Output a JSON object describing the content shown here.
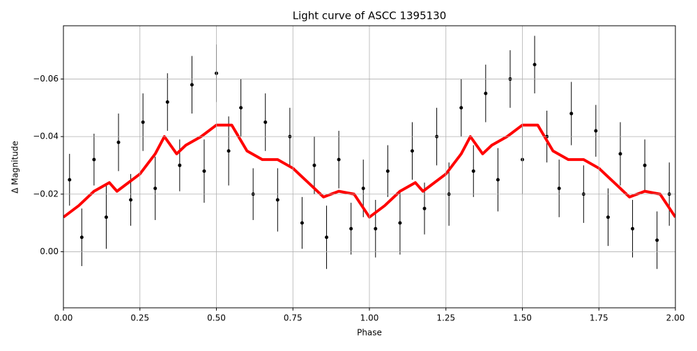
{
  "chart_data": {
    "type": "errorbar-line",
    "title": "Light curve of ASCC 1395130",
    "xlabel": "Phase",
    "ylabel": "Δ Magnitude",
    "xlim": [
      0,
      2
    ],
    "ylim": [
      0.0195,
      -0.0785
    ],
    "grid": true,
    "xticks": [
      {
        "value": 0,
        "label": "0.00"
      },
      {
        "value": 0.25,
        "label": "0.25"
      },
      {
        "value": 0.5,
        "label": "0.50"
      },
      {
        "value": 0.75,
        "label": "0.75"
      },
      {
        "value": 1,
        "label": "1.00"
      },
      {
        "value": 1.25,
        "label": "1.25"
      },
      {
        "value": 1.5,
        "label": "1.50"
      },
      {
        "value": 1.75,
        "label": "1.75"
      },
      {
        "value": 2,
        "label": "2.00"
      }
    ],
    "yticks": [
      {
        "value": -0.06,
        "label": "−0.06"
      },
      {
        "value": -0.04,
        "label": "−0.04"
      },
      {
        "value": -0.02,
        "label": "−0.02"
      },
      {
        "value": 0,
        "label": "0.00"
      }
    ],
    "series": [
      {
        "type": "errorbar",
        "color": "#000000",
        "x": [
          0.02,
          0.06,
          0.1,
          0.14,
          0.18,
          0.22,
          0.26,
          0.3,
          0.34,
          0.38,
          0.42,
          0.46,
          0.5,
          0.54,
          0.58,
          0.62,
          0.66,
          0.7,
          0.74,
          0.78,
          0.82,
          0.86,
          0.9,
          0.94,
          0.98,
          1.02,
          1.06,
          1.1,
          1.14,
          1.18,
          1.22,
          1.26,
          1.3,
          1.34,
          1.38,
          1.42,
          1.46,
          1.5,
          1.54,
          1.58,
          1.62,
          1.66,
          1.7,
          1.74,
          1.78,
          1.82,
          1.86,
          1.9,
          1.94,
          1.98
        ],
        "values": [
          -0.025,
          -0.005,
          -0.032,
          -0.012,
          -0.038,
          -0.018,
          -0.045,
          -0.022,
          -0.052,
          -0.03,
          -0.058,
          -0.028,
          -0.062,
          -0.035,
          -0.05,
          -0.02,
          -0.045,
          -0.018,
          -0.04,
          -0.01,
          -0.03,
          -0.005,
          -0.032,
          -0.008,
          -0.022,
          -0.008,
          -0.028,
          -0.01,
          -0.035,
          -0.015,
          -0.04,
          -0.02,
          -0.05,
          -0.028,
          -0.055,
          -0.025,
          -0.06,
          -0.032,
          -0.065,
          -0.04,
          -0.022,
          -0.048,
          -0.02,
          -0.042,
          -0.012,
          -0.034,
          -0.008,
          -0.03,
          -0.004,
          -0.02
        ],
        "errors": [
          0.009,
          0.01,
          0.009,
          0.011,
          0.01,
          0.009,
          0.01,
          0.011,
          0.01,
          0.009,
          0.01,
          0.011,
          0.01,
          0.012,
          0.01,
          0.009,
          0.01,
          0.011,
          0.01,
          0.009,
          0.01,
          0.011,
          0.01,
          0.009,
          0.01,
          0.01,
          0.009,
          0.011,
          0.01,
          0.009,
          0.01,
          0.011,
          0.01,
          0.009,
          0.01,
          0.011,
          0.01,
          0.012,
          0.01,
          0.009,
          0.01,
          0.011,
          0.01,
          0.009,
          0.01,
          0.011,
          0.01,
          0.009,
          0.01,
          0.011
        ]
      },
      {
        "type": "line",
        "color": "#ff0000",
        "x": [
          0,
          0.05,
          0.1,
          0.15,
          0.175,
          0.2,
          0.25,
          0.3,
          0.33,
          0.37,
          0.4,
          0.45,
          0.5,
          0.55,
          0.6,
          0.65,
          0.7,
          0.75,
          0.8,
          0.85,
          0.9,
          0.95,
          1,
          1.05,
          1.1,
          1.15,
          1.175,
          1.2,
          1.25,
          1.3,
          1.33,
          1.37,
          1.4,
          1.45,
          1.5,
          1.55,
          1.6,
          1.65,
          1.7,
          1.75,
          1.8,
          1.85,
          1.9,
          1.95,
          2
        ],
        "values": [
          -0.012,
          -0.016,
          -0.021,
          -0.024,
          -0.021,
          -0.023,
          -0.027,
          -0.034,
          -0.04,
          -0.034,
          -0.037,
          -0.04,
          -0.044,
          -0.044,
          -0.035,
          -0.032,
          -0.032,
          -0.029,
          -0.024,
          -0.019,
          -0.021,
          -0.02,
          -0.012,
          -0.016,
          -0.021,
          -0.024,
          -0.021,
          -0.023,
          -0.027,
          -0.034,
          -0.04,
          -0.034,
          -0.037,
          -0.04,
          -0.044,
          -0.044,
          -0.035,
          -0.032,
          -0.032,
          -0.029,
          -0.024,
          -0.019,
          -0.021,
          -0.02,
          -0.012
        ]
      }
    ]
  }
}
